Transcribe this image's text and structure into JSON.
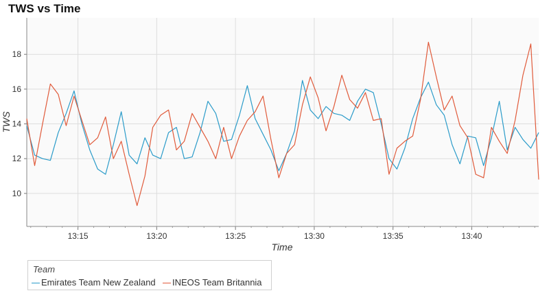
{
  "chart_data": {
    "type": "line",
    "title": "TWS vs Time",
    "xlabel": "Time",
    "ylabel": "TWS",
    "x_ticks": [
      "13:15",
      "13:20",
      "13:25",
      "13:30",
      "13:35",
      "13:40"
    ],
    "y_ticks": [
      10,
      12,
      14,
      16,
      18
    ],
    "xlim": [
      "13:11:45",
      "13:44:15"
    ],
    "ylim": [
      8.1,
      20.1
    ],
    "grid": true,
    "legend": {
      "title": "Team",
      "placement": "bottom-left"
    },
    "series": [
      {
        "name": "Emirates Team New Zealand",
        "color": "#2a9bc9",
        "points": [
          [
            "13:11:45",
            13.9
          ],
          [
            "13:12:15",
            12.2
          ],
          [
            "13:12:45",
            12.0
          ],
          [
            "13:13:15",
            11.9
          ],
          [
            "13:13:45",
            13.5
          ],
          [
            "13:14:15",
            14.6
          ],
          [
            "13:14:45",
            15.9
          ],
          [
            "13:15:15",
            14.0
          ],
          [
            "13:15:45",
            12.5
          ],
          [
            "13:16:15",
            11.4
          ],
          [
            "13:16:45",
            11.1
          ],
          [
            "13:17:15",
            12.8
          ],
          [
            "13:17:45",
            14.7
          ],
          [
            "13:18:15",
            12.2
          ],
          [
            "13:18:45",
            11.7
          ],
          [
            "13:19:15",
            13.2
          ],
          [
            "13:19:45",
            12.2
          ],
          [
            "13:20:15",
            12.0
          ],
          [
            "13:20:45",
            13.5
          ],
          [
            "13:21:15",
            13.8
          ],
          [
            "13:21:45",
            12.0
          ],
          [
            "13:22:15",
            12.1
          ],
          [
            "13:22:45",
            13.5
          ],
          [
            "13:23:15",
            15.3
          ],
          [
            "13:23:45",
            14.6
          ],
          [
            "13:24:15",
            13.0
          ],
          [
            "13:24:45",
            13.1
          ],
          [
            "13:25:15",
            14.5
          ],
          [
            "13:25:45",
            16.2
          ],
          [
            "13:26:15",
            14.3
          ],
          [
            "13:26:45",
            13.4
          ],
          [
            "13:27:15",
            12.5
          ],
          [
            "13:27:45",
            11.3
          ],
          [
            "13:28:15",
            12.3
          ],
          [
            "13:28:45",
            13.6
          ],
          [
            "13:29:15",
            16.5
          ],
          [
            "13:29:45",
            14.8
          ],
          [
            "13:30:15",
            14.3
          ],
          [
            "13:30:45",
            15.0
          ],
          [
            "13:31:15",
            14.6
          ],
          [
            "13:31:45",
            14.5
          ],
          [
            "13:32:15",
            14.2
          ],
          [
            "13:32:45",
            15.3
          ],
          [
            "13:33:15",
            16.0
          ],
          [
            "13:33:45",
            15.8
          ],
          [
            "13:34:15",
            14.0
          ],
          [
            "13:34:45",
            12.0
          ],
          [
            "13:35:15",
            11.4
          ],
          [
            "13:35:45",
            12.6
          ],
          [
            "13:36:15",
            14.3
          ],
          [
            "13:36:45",
            15.5
          ],
          [
            "13:37:15",
            16.4
          ],
          [
            "13:37:45",
            15.1
          ],
          [
            "13:38:15",
            14.5
          ],
          [
            "13:38:45",
            12.8
          ],
          [
            "13:39:15",
            11.7
          ],
          [
            "13:39:45",
            13.3
          ],
          [
            "13:40:15",
            13.2
          ],
          [
            "13:40:45",
            11.6
          ],
          [
            "13:41:15",
            13.2
          ],
          [
            "13:41:45",
            15.3
          ],
          [
            "13:42:15",
            12.5
          ],
          [
            "13:42:45",
            13.8
          ],
          [
            "13:43:15",
            13.1
          ],
          [
            "13:43:45",
            12.6
          ],
          [
            "13:44:15",
            13.5
          ]
        ]
      },
      {
        "name": "INEOS Team Britannia",
        "color": "#e05a3a",
        "points": [
          [
            "13:11:45",
            14.3
          ],
          [
            "13:12:15",
            11.6
          ],
          [
            "13:12:45",
            14.0
          ],
          [
            "13:13:15",
            16.3
          ],
          [
            "13:13:45",
            15.7
          ],
          [
            "13:14:15",
            13.9
          ],
          [
            "13:14:45",
            15.6
          ],
          [
            "13:15:15",
            14.2
          ],
          [
            "13:15:45",
            12.8
          ],
          [
            "13:16:15",
            13.2
          ],
          [
            "13:16:45",
            14.4
          ],
          [
            "13:17:15",
            12.0
          ],
          [
            "13:17:45",
            13.0
          ],
          [
            "13:18:15",
            11.1
          ],
          [
            "13:18:45",
            9.3
          ],
          [
            "13:19:15",
            11.0
          ],
          [
            "13:19:45",
            13.8
          ],
          [
            "13:20:15",
            14.5
          ],
          [
            "13:20:45",
            14.8
          ],
          [
            "13:21:15",
            12.5
          ],
          [
            "13:21:45",
            13.0
          ],
          [
            "13:22:15",
            14.6
          ],
          [
            "13:22:45",
            13.8
          ],
          [
            "13:23:15",
            13.0
          ],
          [
            "13:23:45",
            12.0
          ],
          [
            "13:24:15",
            13.8
          ],
          [
            "13:24:45",
            12.0
          ],
          [
            "13:25:15",
            13.3
          ],
          [
            "13:25:45",
            14.2
          ],
          [
            "13:26:15",
            14.7
          ],
          [
            "13:26:45",
            15.6
          ],
          [
            "13:27:15",
            13.1
          ],
          [
            "13:27:45",
            10.9
          ],
          [
            "13:28:15",
            12.3
          ],
          [
            "13:28:45",
            12.8
          ],
          [
            "13:29:15",
            15.1
          ],
          [
            "13:29:45",
            16.7
          ],
          [
            "13:30:15",
            15.5
          ],
          [
            "13:30:45",
            13.6
          ],
          [
            "13:31:15",
            15.0
          ],
          [
            "13:31:45",
            16.8
          ],
          [
            "13:32:15",
            15.4
          ],
          [
            "13:32:45",
            14.9
          ],
          [
            "13:33:15",
            15.8
          ],
          [
            "13:33:45",
            14.2
          ],
          [
            "13:34:15",
            14.3
          ],
          [
            "13:34:45",
            11.1
          ],
          [
            "13:35:15",
            12.6
          ],
          [
            "13:35:45",
            13.0
          ],
          [
            "13:36:15",
            13.3
          ],
          [
            "13:36:45",
            15.4
          ],
          [
            "13:37:15",
            18.7
          ],
          [
            "13:37:45",
            16.7
          ],
          [
            "13:38:15",
            14.8
          ],
          [
            "13:38:45",
            15.6
          ],
          [
            "13:39:15",
            13.9
          ],
          [
            "13:39:45",
            13.2
          ],
          [
            "13:40:15",
            11.1
          ],
          [
            "13:40:45",
            10.9
          ],
          [
            "13:41:15",
            13.8
          ],
          [
            "13:41:45",
            13.0
          ],
          [
            "13:42:15",
            12.3
          ],
          [
            "13:42:45",
            14.2
          ],
          [
            "13:43:15",
            16.8
          ],
          [
            "13:43:45",
            18.6
          ],
          [
            "13:44:15",
            10.8
          ]
        ]
      }
    ]
  }
}
